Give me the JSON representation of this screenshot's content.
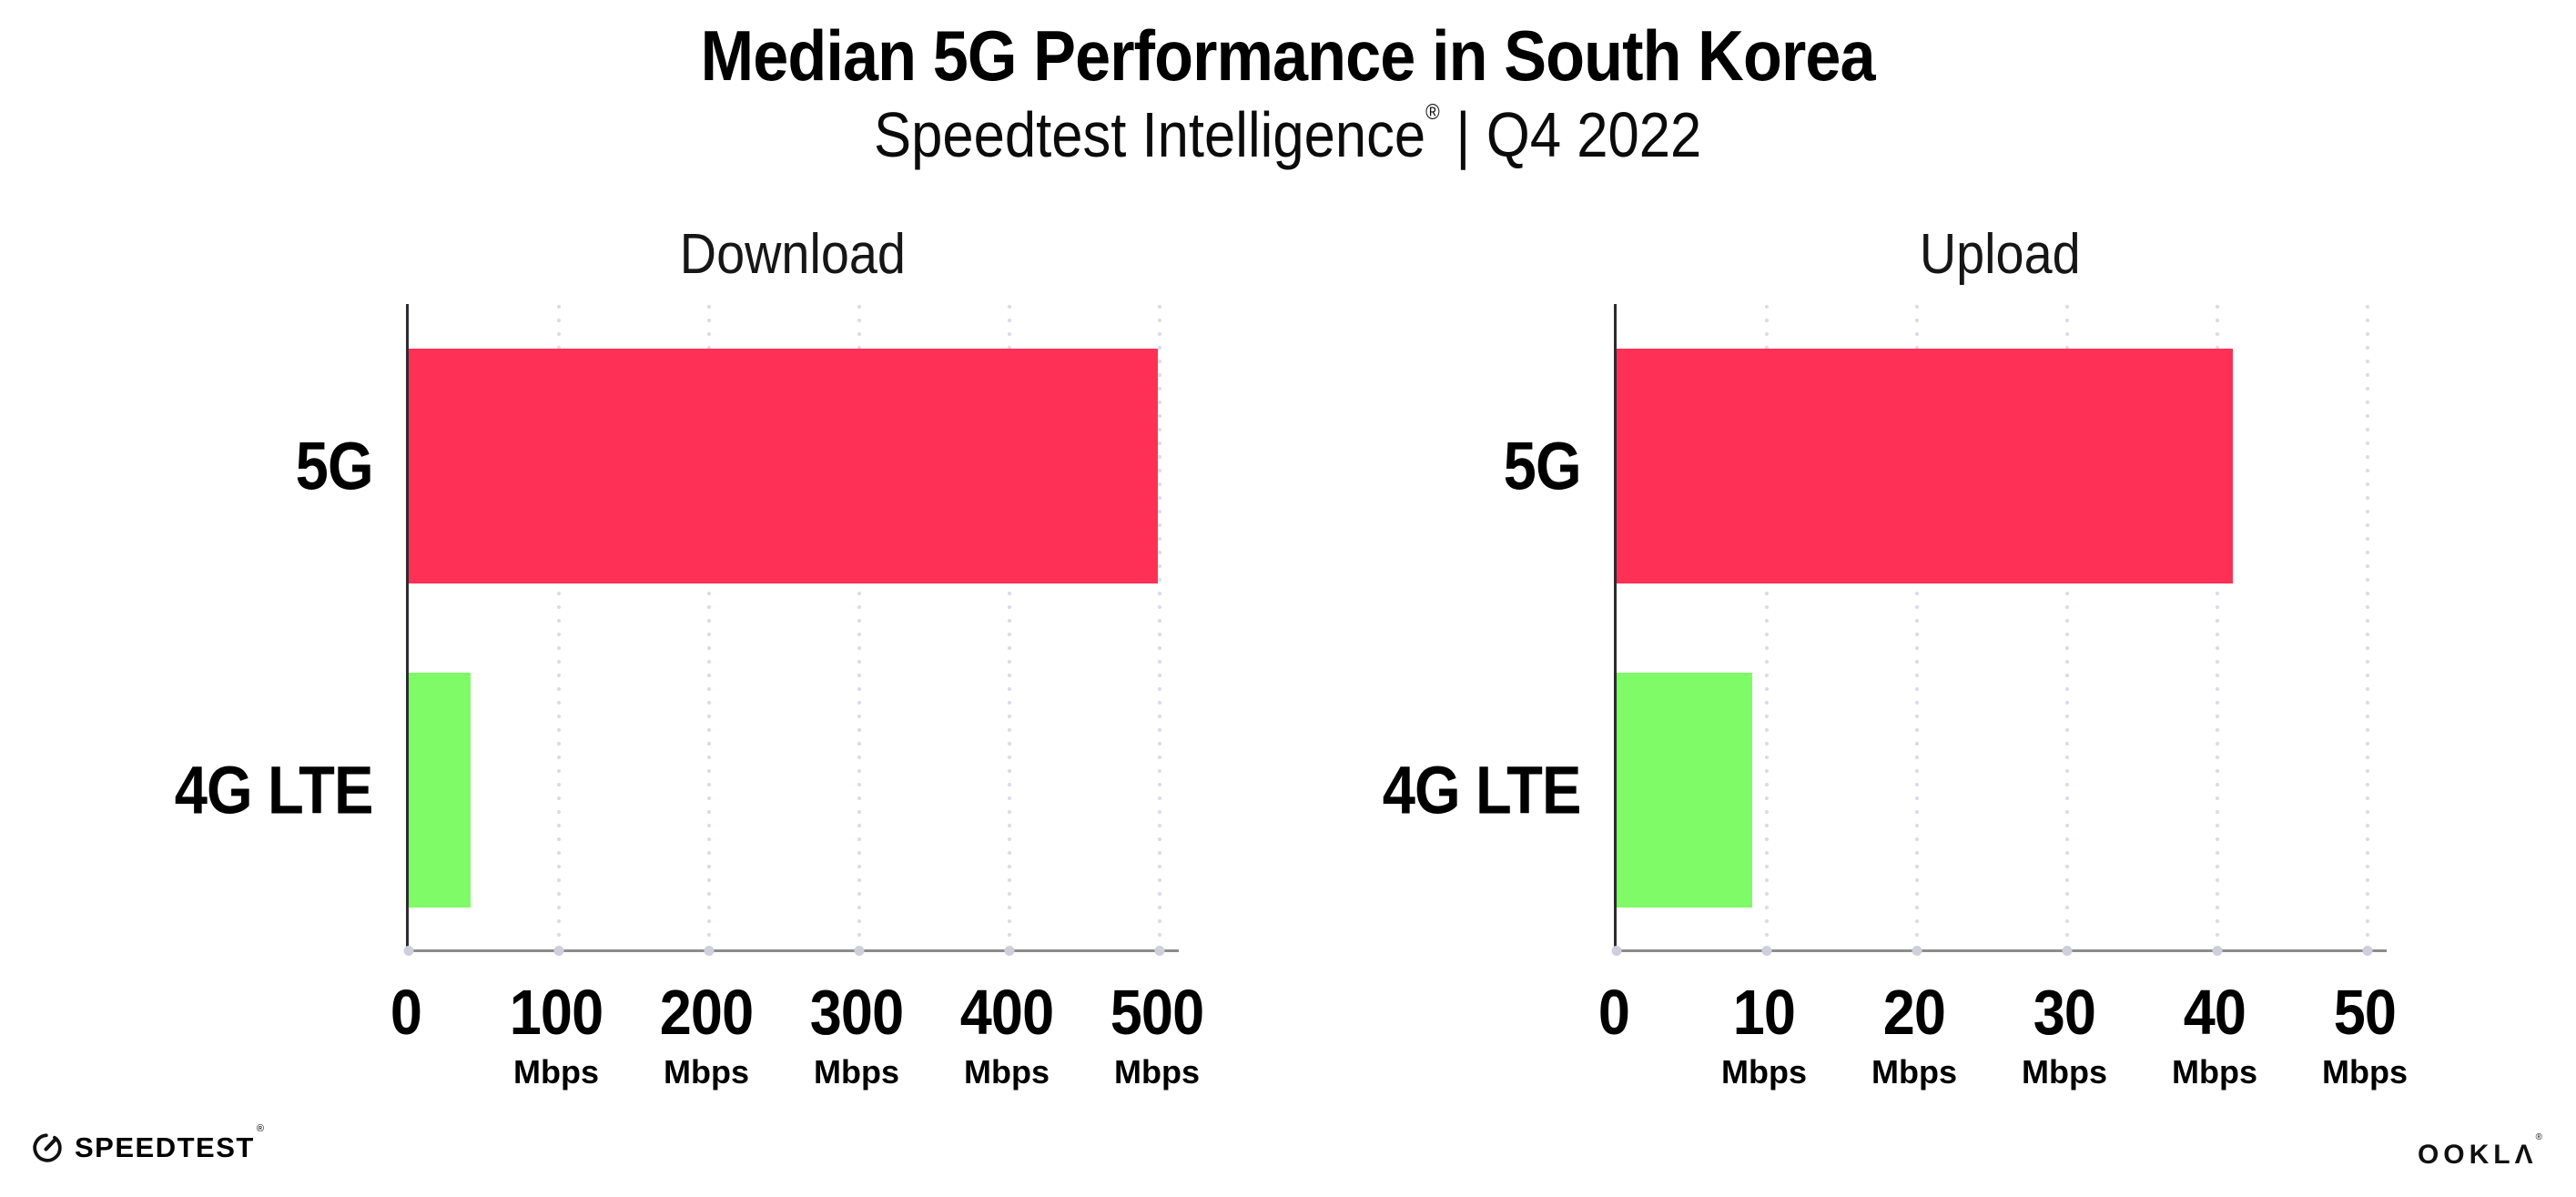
{
  "header": {
    "title": "Median 5G Performance in South Korea",
    "subtitle_brand": "Speedtest Intelligence",
    "subtitle_reg": "®",
    "subtitle_sep": "|",
    "subtitle_period": "Q4 2022"
  },
  "colors": {
    "bar_5g": "#ff3056",
    "bar_4g_lte": "#7efb66",
    "gridline_dot": "#dcdce6",
    "baseline_dot": "#cfcfdb",
    "left_spine": "#2b2b30",
    "baseline": "#8c8c8c",
    "text": "#000000"
  },
  "chart_data": [
    {
      "type": "bar",
      "orientation": "horizontal",
      "title": "Download",
      "categories": [
        "5G",
        "4G LTE"
      ],
      "values": [
        499,
        41
      ],
      "unit": "Mbps",
      "ticks": [
        0,
        100,
        200,
        300,
        400,
        500
      ],
      "xlim": [
        0,
        515
      ],
      "bar_colors": [
        "#ff3056",
        "#7efb66"
      ],
      "grid": "dotted-vertical",
      "legend": "none"
    },
    {
      "type": "bar",
      "orientation": "horizontal",
      "title": "Upload",
      "categories": [
        "5G",
        "4G LTE"
      ],
      "values": [
        41,
        9
      ],
      "unit": "Mbps",
      "ticks": [
        0,
        10,
        20,
        30,
        40,
        50
      ],
      "xlim": [
        0,
        51.5
      ],
      "bar_colors": [
        "#ff3056",
        "#7efb66"
      ],
      "grid": "dotted-vertical",
      "legend": "none"
    }
  ],
  "footer": {
    "speedtest_wordmark": "SPEEDTEST",
    "speedtest_reg": "®",
    "speedtest_icon": "speedtest-gauge-icon",
    "ookla_wordmark": "OOKLΛ",
    "ookla_reg": "®"
  }
}
